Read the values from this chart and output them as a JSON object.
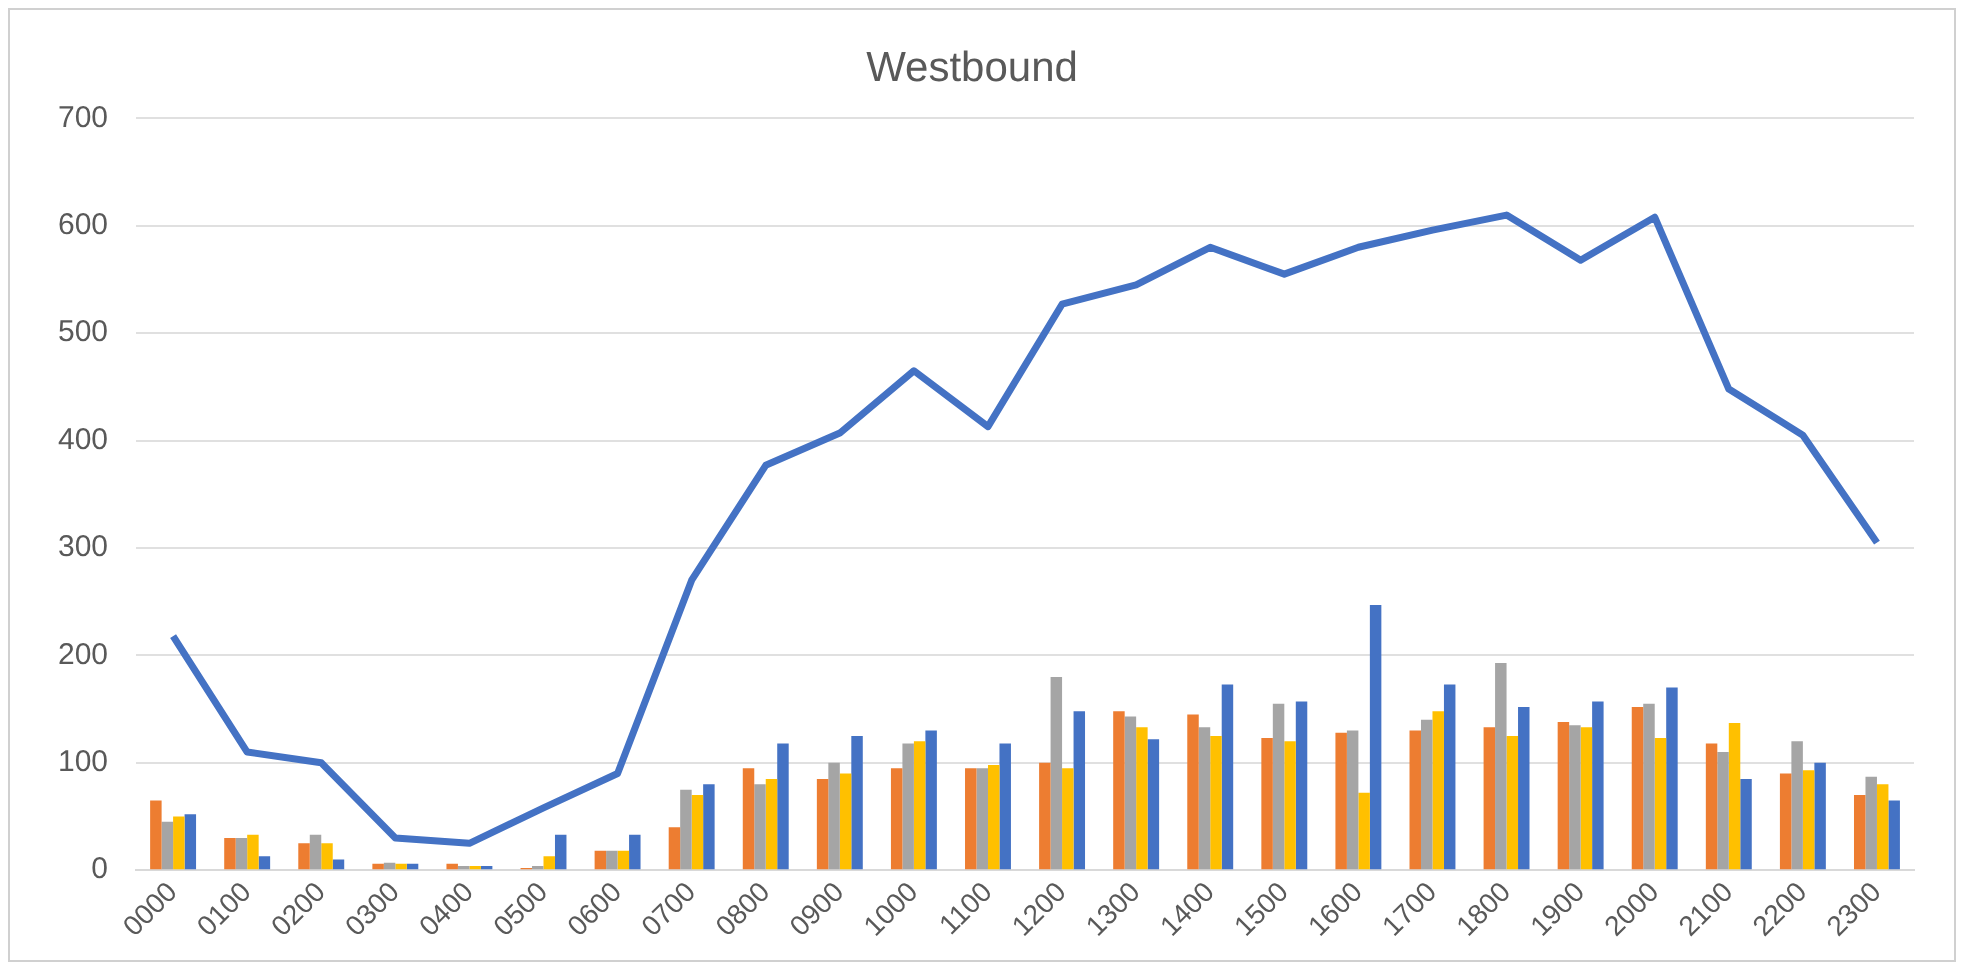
{
  "chart_data": {
    "type": "bar",
    "title": "Westbound",
    "categories": [
      "0000",
      "0100",
      "0200",
      "0300",
      "0400",
      "0500",
      "0600",
      "0700",
      "0800",
      "0900",
      "1000",
      "1100",
      "1200",
      "1300",
      "1400",
      "1500",
      "1600",
      "1700",
      "1800",
      "1900",
      "2000",
      "2100",
      "2200",
      "2300"
    ],
    "series": [
      {
        "color": "#ed7d31",
        "values": [
          65,
          30,
          25,
          6,
          6,
          2,
          18,
          40,
          95,
          85,
          95,
          95,
          100,
          148,
          145,
          123,
          128,
          130,
          133,
          138,
          152,
          118,
          90,
          70
        ]
      },
      {
        "color": "#a5a5a5",
        "values": [
          45,
          30,
          33,
          7,
          4,
          4,
          18,
          75,
          80,
          100,
          118,
          95,
          180,
          143,
          133,
          155,
          130,
          140,
          193,
          135,
          155,
          110,
          120,
          87
        ]
      },
      {
        "color": "#ffc000",
        "values": [
          50,
          33,
          25,
          6,
          4,
          13,
          18,
          70,
          85,
          90,
          120,
          98,
          95,
          133,
          125,
          120,
          72,
          148,
          125,
          133,
          123,
          137,
          93,
          80
        ]
      },
      {
        "color": "#4472c4",
        "values": [
          52,
          13,
          10,
          6,
          4,
          33,
          33,
          80,
          118,
          125,
          130,
          118,
          148,
          122,
          173,
          157,
          247,
          173,
          152,
          157,
          170,
          85,
          100,
          65
        ]
      },
      {
        "type": "line",
        "color": "#4472c4",
        "values": [
          218,
          110,
          100,
          30,
          25,
          58,
          90,
          270,
          377,
          407,
          465,
          413,
          527,
          545,
          580,
          555,
          580,
          596,
          610,
          568,
          608,
          448,
          405,
          305
        ]
      }
    ],
    "ylim": [
      0,
      700
    ],
    "yticks": [
      0,
      100,
      200,
      300,
      400,
      500,
      600,
      700
    ],
    "grid": "y",
    "legend": false,
    "marker": "none"
  }
}
